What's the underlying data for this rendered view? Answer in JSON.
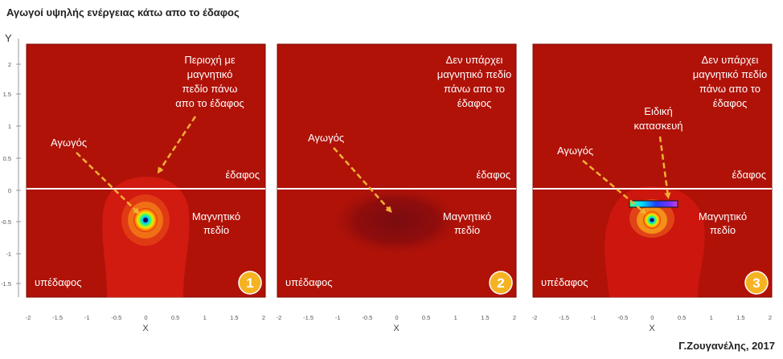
{
  "title": "Αγωγοί υψηλής ενέργειας κάτω απο το έδαφος",
  "credit": "Γ.Ζουγανέλης, 2017",
  "axes": {
    "y_label": "Y",
    "x_label": "X",
    "y_ticks": [
      "2",
      "1.5",
      "1",
      "0.5",
      "0",
      "-0.5",
      "-1",
      "-1.5"
    ],
    "x_ticks": [
      "-2",
      "-1.5",
      "-1",
      "-0.5",
      "0",
      "0.5",
      "1",
      "1.5",
      "2"
    ]
  },
  "colors": {
    "background_field": "#b01208",
    "panel_border": "#7a0a04",
    "ground_line": "#ffffff",
    "arrow": "#f2b134",
    "badge": "#f5b324",
    "text": "#ffffff"
  },
  "panels": [
    {
      "number": "1",
      "top_note": [
        "Περιοχή με",
        "μαγνητικό",
        "πεδίο πάνω",
        "απο το έδαφος"
      ],
      "conductor_label": "Αγωγός",
      "ground_label": "έδαφος",
      "field_label": [
        "Μαγνητικό",
        "πεδίο"
      ],
      "subsoil_label": "υπέδαφος"
    },
    {
      "number": "2",
      "top_note": [
        "Δεν υπάρχει",
        "μαγνητικό πεδίο",
        "πάνω απο το",
        "έδαφος"
      ],
      "conductor_label": "Αγωγός",
      "ground_label": "έδαφος",
      "field_label": [
        "Μαγνητικό",
        "πεδίο"
      ],
      "subsoil_label": "υπέδαφος"
    },
    {
      "number": "3",
      "top_note": [
        "Δεν υπάρχει",
        "μαγνητικό πεδίο",
        "πάνω απο το",
        "έδαφος"
      ],
      "special_label": [
        "Ειδική",
        "κατασκευή"
      ],
      "conductor_label": "Αγωγός",
      "ground_label": "έδαφος",
      "field_label": [
        "Μαγνητικό",
        "πεδίο"
      ],
      "subsoil_label": "υπέδαφος"
    }
  ]
}
